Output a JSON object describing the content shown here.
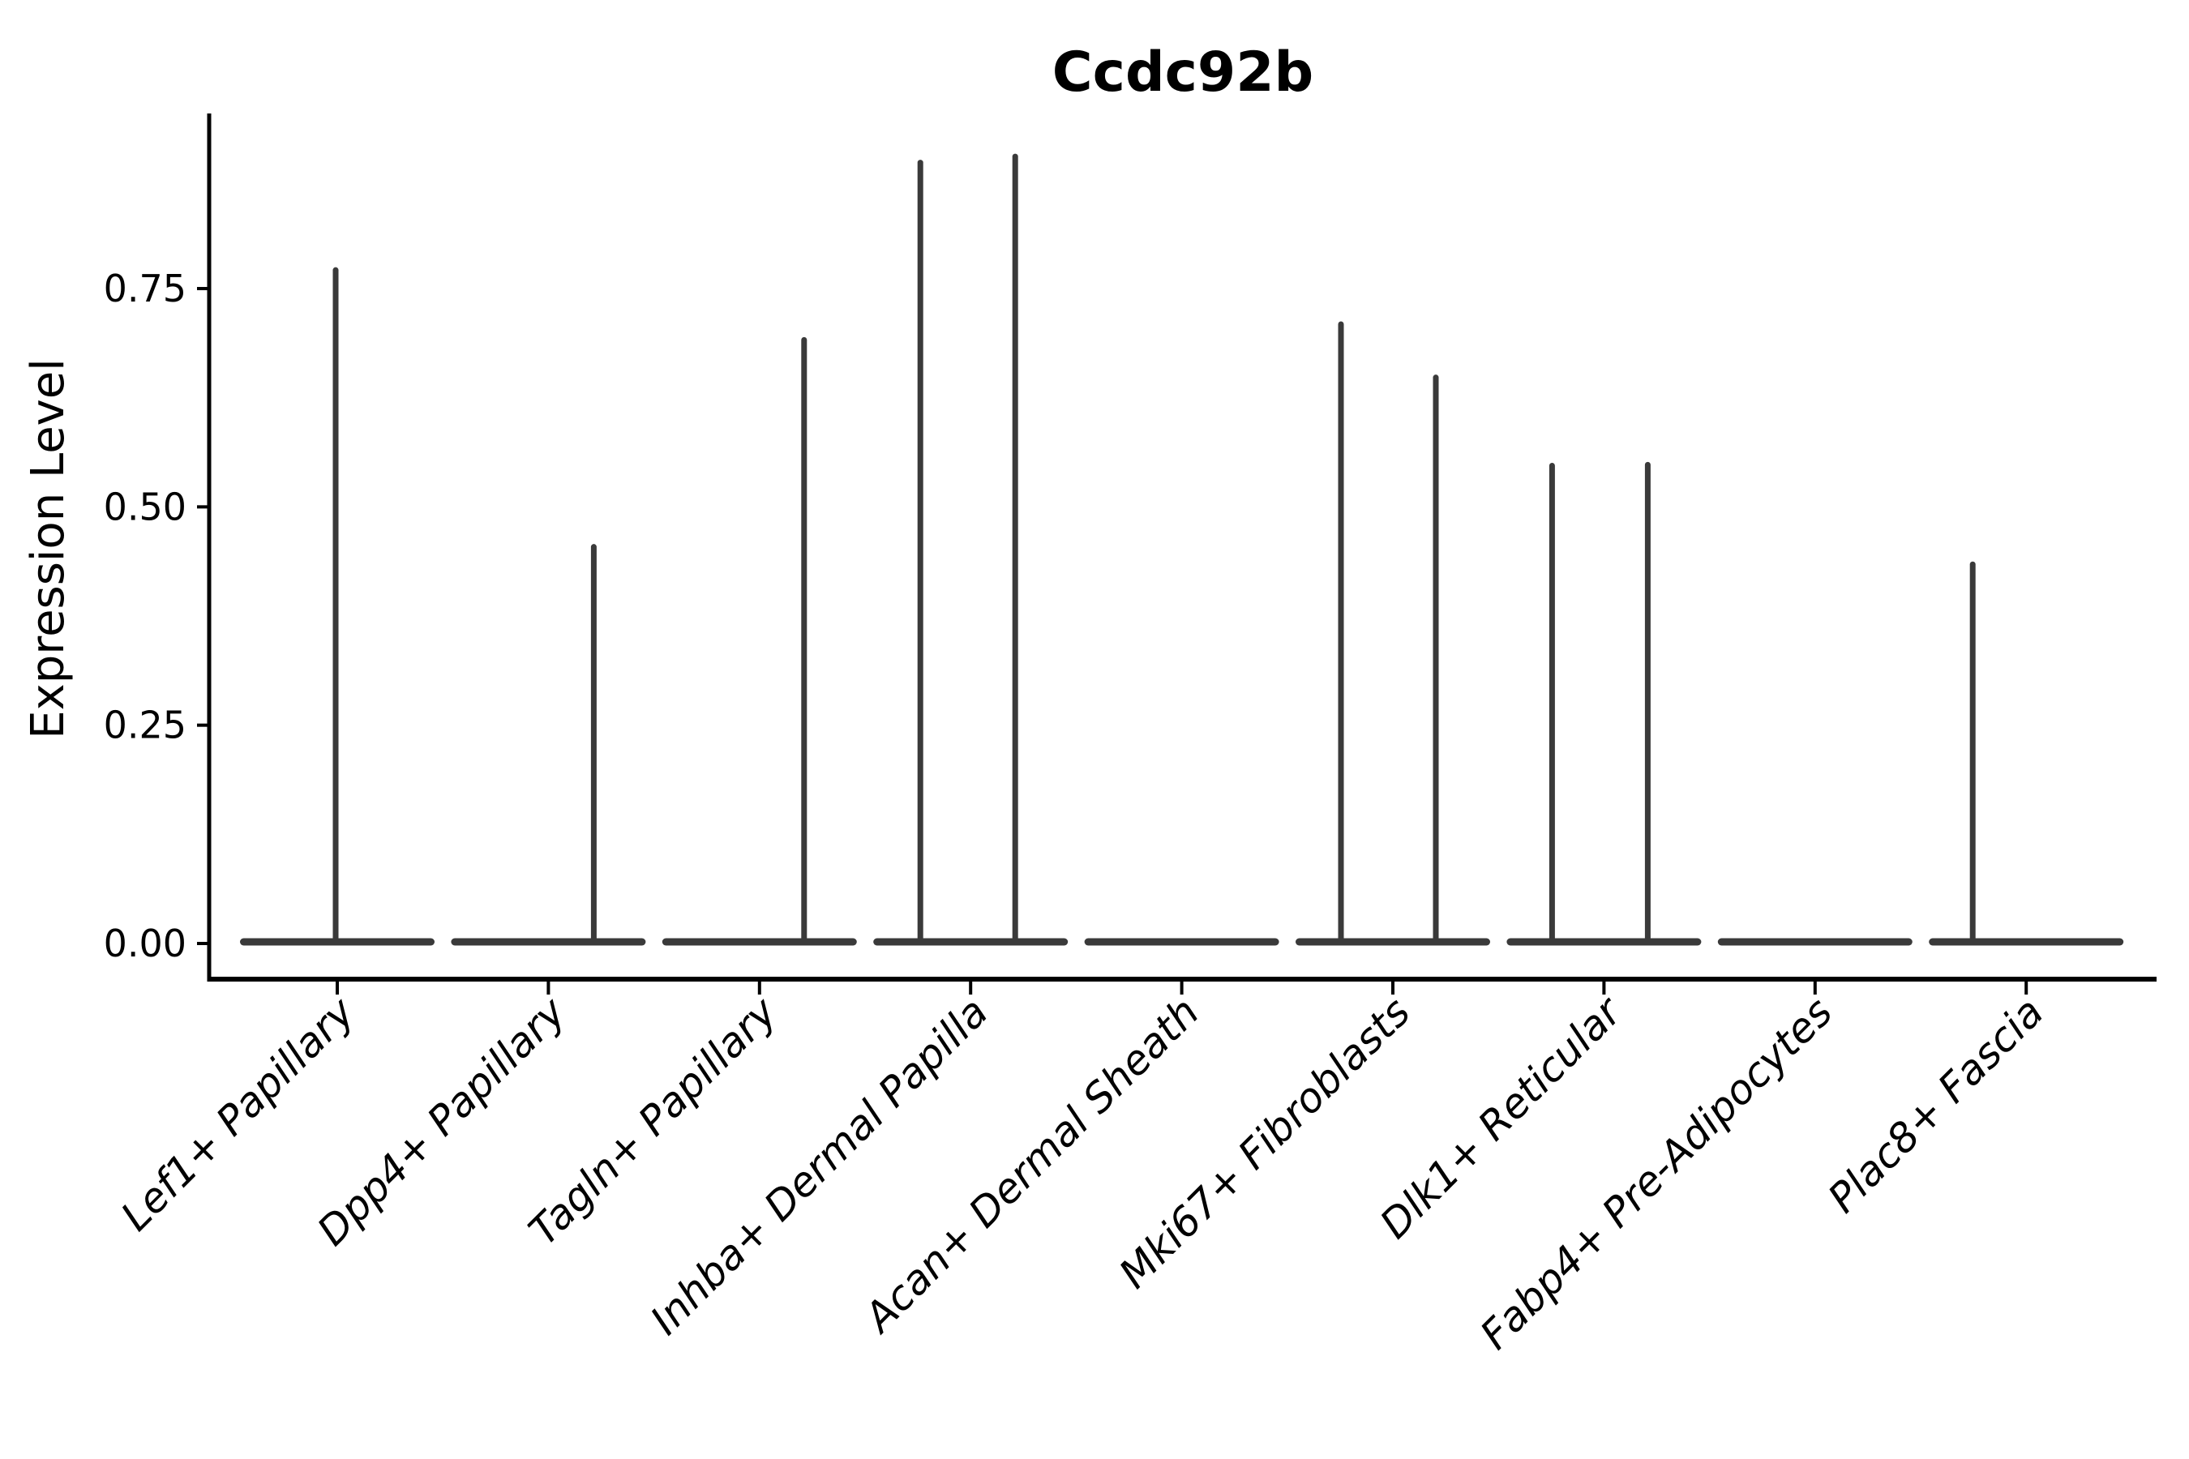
{
  "figure": {
    "title": "Ccdc92b",
    "background": "#ffffff"
  },
  "chart_data": {
    "type": "violin",
    "title": "Ccdc92b",
    "xlabel": "",
    "ylabel": "Expression Level",
    "ylim": [
      -0.041,
      0.95
    ],
    "yticks": [
      0.0,
      0.25,
      0.5,
      0.75
    ],
    "ytick_labels": [
      "0.00",
      "0.25",
      "0.50",
      "0.75"
    ],
    "grid": false,
    "legend": null,
    "violin_color": "#3a3a3a",
    "axis_color": "#000000",
    "tick_label_style": "italic",
    "categories": [
      "Lef1+ Papillary",
      "Dpp4+ Papillary",
      "Tagln+ Papillary",
      "Inhba+ Dermal Papilla",
      "Acan+ Dermal Sheath",
      "Mki67+ Fibroblasts",
      "Dlk1+ Reticular",
      "Fabp4+ Pre-Adipocytes",
      "Plac8+ Fascia"
    ],
    "violins": [
      {
        "category": "Lef1+ Papillary",
        "max_expression": 0.77,
        "baseline_at_zero": true,
        "spikes": [
          {
            "dx": -2,
            "value": 0.774
          }
        ]
      },
      {
        "category": "Dpp4+ Papillary",
        "max_expression": 0.46,
        "baseline_at_zero": true,
        "spikes": [
          {
            "dx": 56,
            "value": 0.457
          }
        ]
      },
      {
        "category": "Tagln+ Papillary",
        "max_expression": 0.69,
        "baseline_at_zero": true,
        "spikes": [
          {
            "dx": 55,
            "value": 0.694
          }
        ]
      },
      {
        "category": "Inhba+ Dermal Papilla",
        "max_expression": 0.9,
        "baseline_at_zero": true,
        "spikes": [
          {
            "dx": -62,
            "value": 0.897
          },
          {
            "dx": 55,
            "value": 0.904
          }
        ]
      },
      {
        "category": "Acan+ Dermal Sheath",
        "max_expression": 0.0,
        "baseline_at_zero": true,
        "spikes": []
      },
      {
        "category": "Mki67+ Fibroblasts",
        "max_expression": 0.71,
        "baseline_at_zero": true,
        "spikes": [
          {
            "dx": -64,
            "value": 0.712
          },
          {
            "dx": 53,
            "value": 0.651
          }
        ]
      },
      {
        "category": "Dlk1+ Reticular",
        "max_expression": 0.55,
        "baseline_at_zero": true,
        "spikes": [
          {
            "dx": -64,
            "value": 0.55
          },
          {
            "dx": 54,
            "value": 0.551
          }
        ]
      },
      {
        "category": "Fabp4+ Pre-Adipocytes",
        "max_expression": 0.0,
        "baseline_at_zero": true,
        "spikes": []
      },
      {
        "category": "Plac8+ Fascia",
        "max_expression": 0.44,
        "baseline_at_zero": true,
        "spikes": [
          {
            "dx": -66,
            "value": 0.437
          }
        ]
      }
    ]
  }
}
